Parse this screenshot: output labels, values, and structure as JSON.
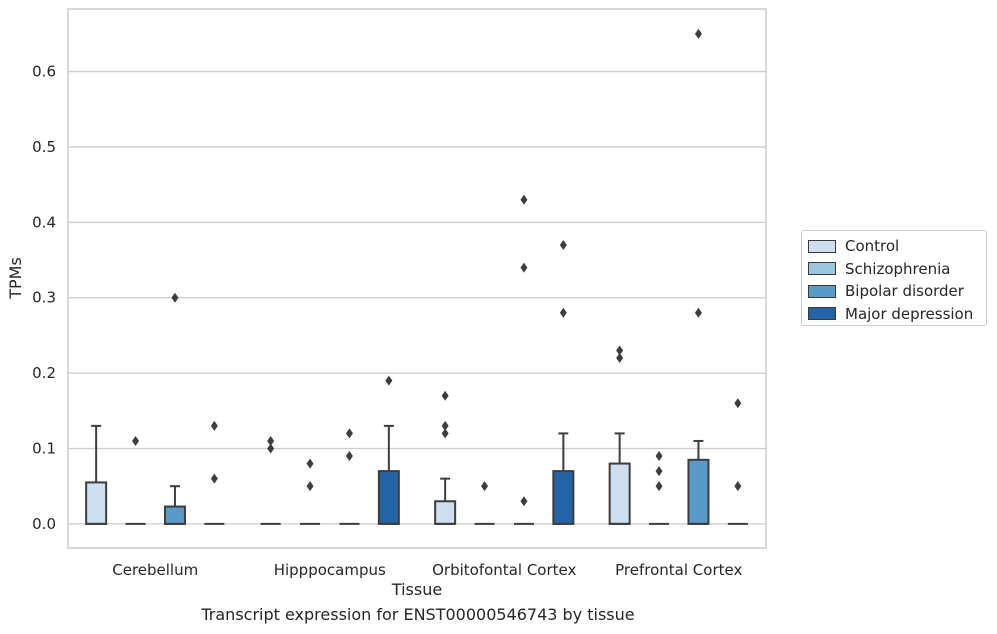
{
  "chart_data": {
    "type": "box",
    "xlabel": "Tissue",
    "ylabel": "TPMs",
    "caption": "Transcript expression for ENST00000546743 by tissue",
    "ylim": [
      -0.032,
      0.683
    ],
    "yticks": [
      0.0,
      0.1,
      0.2,
      0.3,
      0.4,
      0.5,
      0.6
    ],
    "ytick_labels": [
      "0.0",
      "0.1",
      "0.2",
      "0.3",
      "0.4",
      "0.5",
      "0.6"
    ],
    "grid": "horizontal",
    "legend_position": "right",
    "categories": [
      "Cerebellum",
      "Hipppocampus",
      "Orbitofontal Cortex",
      "Prefrontal Cortex"
    ],
    "series": [
      {
        "name": "Control",
        "color": "#cfdfef",
        "boxes": [
          {
            "q1": 0.0,
            "median": 0.0,
            "q3": 0.055,
            "whisker_low": 0.0,
            "whisker_high": 0.13,
            "outliers": []
          },
          {
            "q1": 0.0,
            "median": 0.0,
            "q3": 0.0,
            "whisker_low": 0.0,
            "whisker_high": 0.0,
            "outliers": [
              0.1,
              0.11
            ]
          },
          {
            "q1": 0.0,
            "median": 0.0,
            "q3": 0.03,
            "whisker_low": 0.0,
            "whisker_high": 0.06,
            "outliers": [
              0.12,
              0.13,
              0.17
            ]
          },
          {
            "q1": 0.0,
            "median": 0.0,
            "q3": 0.08,
            "whisker_low": 0.0,
            "whisker_high": 0.12,
            "outliers": [
              0.22,
              0.23
            ]
          }
        ]
      },
      {
        "name": "Schizophrenia",
        "color": "#9bc6de",
        "boxes": [
          {
            "q1": 0.0,
            "median": 0.0,
            "q3": 0.0,
            "whisker_low": 0.0,
            "whisker_high": 0.0,
            "outliers": [
              0.11
            ]
          },
          {
            "q1": 0.0,
            "median": 0.0,
            "q3": 0.0,
            "whisker_low": 0.0,
            "whisker_high": 0.0,
            "outliers": [
              0.05,
              0.08
            ]
          },
          {
            "q1": 0.0,
            "median": 0.0,
            "q3": 0.0,
            "whisker_low": 0.0,
            "whisker_high": 0.0,
            "outliers": [
              0.05
            ]
          },
          {
            "q1": 0.0,
            "median": 0.0,
            "q3": 0.0,
            "whisker_low": 0.0,
            "whisker_high": 0.0,
            "outliers": [
              0.05,
              0.07,
              0.09
            ]
          }
        ]
      },
      {
        "name": "Bipolar disorder",
        "color": "#5a9ac6",
        "boxes": [
          {
            "q1": 0.0,
            "median": 0.0,
            "q3": 0.023,
            "whisker_low": 0.0,
            "whisker_high": 0.05,
            "outliers": [
              0.3
            ]
          },
          {
            "q1": 0.0,
            "median": 0.0,
            "q3": 0.0,
            "whisker_low": 0.0,
            "whisker_high": 0.0,
            "outliers": [
              0.09,
              0.12
            ]
          },
          {
            "q1": 0.0,
            "median": 0.0,
            "q3": 0.0,
            "whisker_low": 0.0,
            "whisker_high": 0.0,
            "outliers": [
              0.03,
              0.34,
              0.43
            ]
          },
          {
            "q1": 0.0,
            "median": 0.0,
            "q3": 0.085,
            "whisker_low": 0.0,
            "whisker_high": 0.11,
            "outliers": [
              0.28,
              0.65
            ]
          }
        ]
      },
      {
        "name": "Major depression",
        "color": "#2464a4",
        "boxes": [
          {
            "q1": 0.0,
            "median": 0.0,
            "q3": 0.0,
            "whisker_low": 0.0,
            "whisker_high": 0.0,
            "outliers": [
              0.06,
              0.13
            ]
          },
          {
            "q1": 0.0,
            "median": 0.0,
            "q3": 0.07,
            "whisker_low": 0.0,
            "whisker_high": 0.13,
            "outliers": [
              0.19
            ]
          },
          {
            "q1": 0.0,
            "median": 0.0,
            "q3": 0.07,
            "whisker_low": 0.0,
            "whisker_high": 0.12,
            "outliers": [
              0.28,
              0.37
            ]
          },
          {
            "q1": 0.0,
            "median": 0.0,
            "q3": 0.0,
            "whisker_low": 0.0,
            "whisker_high": 0.0,
            "outliers": [
              0.05,
              0.16
            ]
          }
        ]
      }
    ]
  }
}
